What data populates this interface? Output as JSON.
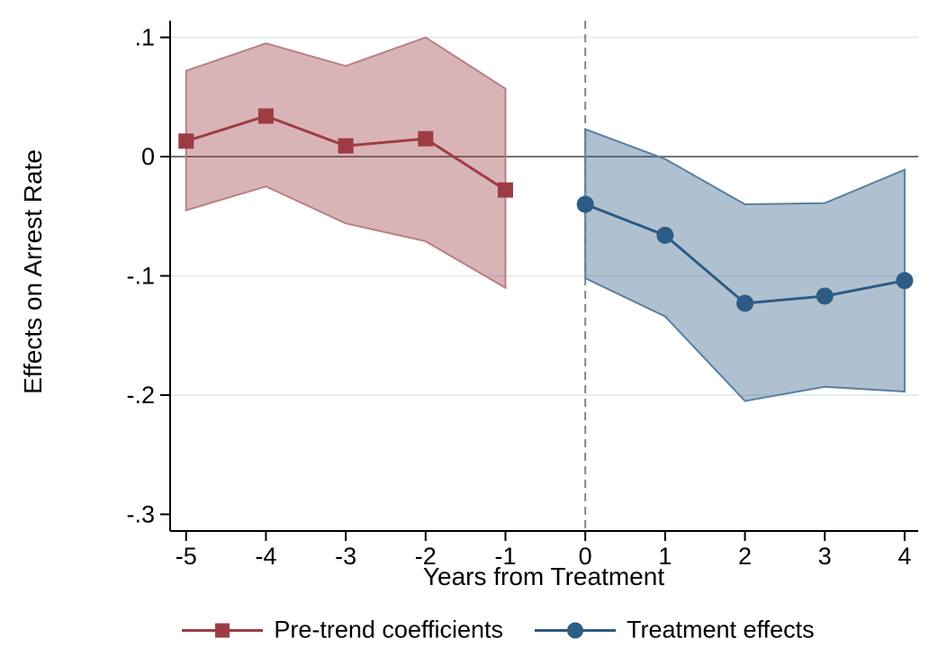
{
  "figure": {
    "background": "#ffffff"
  },
  "chart_data": {
    "type": "line",
    "title": "",
    "xlabel": "Years from Treatment",
    "ylabel": "Effects on Arrest Rate",
    "xlim": [
      -5.2,
      4.17
    ],
    "ylim": [
      -0.314,
      0.114
    ],
    "x_ticks": [
      -5,
      -4,
      -3,
      -2,
      -1,
      0,
      1,
      2,
      3,
      4
    ],
    "x_tick_labels": [
      "-5",
      "-4",
      "-3",
      "-2",
      "-1",
      "0",
      "1",
      "2",
      "3",
      "4"
    ],
    "y_ticks": [
      0.1,
      0,
      -0.1,
      -0.2,
      -0.3
    ],
    "y_tick_labels": [
      ".1",
      "0",
      "-.1",
      "-.2",
      "-.3"
    ],
    "grid_y_values": [
      0.1,
      -0.1,
      -0.2
    ],
    "reference_line_y": 0,
    "vertical_dashed_line_x": 0,
    "legend_position": "bottom",
    "colors": {
      "grid": "#e4edef",
      "zero_line": "#737373",
      "dashed_line": "#848484",
      "axis": "#000000",
      "text": "#000000"
    },
    "series": [
      {
        "name": "Pre-trend coefficients",
        "marker": "square",
        "color": "#9e3c44",
        "band_fill": "rgba(155,58,66,0.38)",
        "band_edge": "#b97f85",
        "x": [
          -5,
          -4,
          -3,
          -2,
          -1
        ],
        "y": [
          0.013,
          0.034,
          0.009,
          0.015,
          -0.028
        ],
        "ci_upper": [
          0.072,
          0.095,
          0.076,
          0.1,
          0.057
        ],
        "ci_lower": [
          -0.045,
          -0.025,
          -0.056,
          -0.071,
          -0.11
        ]
      },
      {
        "name": "Treatment effects",
        "marker": "circle",
        "color": "#2d5b84",
        "band_fill": "rgba(44,92,133,0.38)",
        "band_edge": "#5a7fa0",
        "x": [
          0,
          1,
          2,
          3,
          4
        ],
        "y": [
          -0.04,
          -0.066,
          -0.123,
          -0.117,
          -0.104
        ],
        "ci_upper": [
          0.023,
          -0.002,
          -0.04,
          -0.039,
          -0.011
        ],
        "ci_lower": [
          -0.102,
          -0.134,
          -0.205,
          -0.193,
          -0.197
        ]
      }
    ]
  }
}
